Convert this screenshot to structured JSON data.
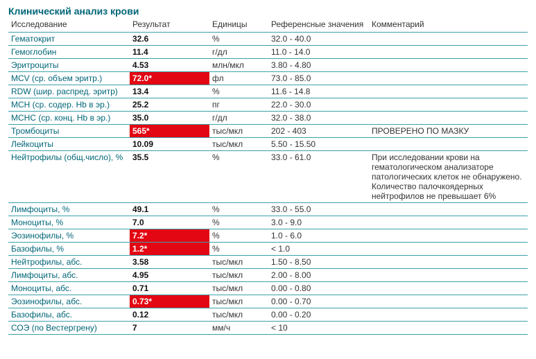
{
  "title": "Клинический анализ крови",
  "columns": [
    "Исследование",
    "Результат",
    "Единицы",
    "Референсные значения",
    "Комментарий"
  ],
  "colors": {
    "teal": "#006678",
    "rule": "#3aa0a8",
    "flag_bg": "#e30613",
    "flag_fg": "#ffffff",
    "text": "#333333",
    "result_text": "#111111",
    "background": "#ffffff"
  },
  "rows": [
    {
      "test": "Гематокрит",
      "result": "32.6",
      "flag": false,
      "units": "%",
      "ref": "32.0 - 40.0",
      "comment": ""
    },
    {
      "test": "Гемоглобин",
      "result": "11.4",
      "flag": false,
      "units": "г/дл",
      "ref": "11.0 - 14.0",
      "comment": ""
    },
    {
      "test": "Эритроциты",
      "result": "4.53",
      "flag": false,
      "units": "млн/мкл",
      "ref": "3.80 - 4.80",
      "comment": ""
    },
    {
      "test": "MCV (ср. объем эритр.)",
      "result": "72.0*",
      "flag": true,
      "units": "фл",
      "ref": "73.0 - 85.0",
      "comment": ""
    },
    {
      "test": "RDW (шир. распред. эритр)",
      "result": "13.4",
      "flag": false,
      "units": "%",
      "ref": "11.6 - 14.8",
      "comment": ""
    },
    {
      "test": "MCH (ср. содер. Hb в эр.)",
      "result": "25.2",
      "flag": false,
      "units": "пг",
      "ref": "22.0 - 30.0",
      "comment": ""
    },
    {
      "test": "MCHC (ср. конц. Hb в эр.)",
      "result": "35.0",
      "flag": false,
      "units": "г/дл",
      "ref": "32.0 - 38.0",
      "comment": ""
    },
    {
      "test": "Тромбоциты",
      "result": "565*",
      "flag": true,
      "units": "тыс/мкл",
      "ref": "202 - 403",
      "comment": "ПРОВЕРЕНО ПО МАЗКУ"
    },
    {
      "test": "Лейкоциты",
      "result": "10.09",
      "flag": false,
      "units": "тыс/мкл",
      "ref": "5.50 - 15.50",
      "comment": ""
    },
    {
      "test": "Нейтрофилы (общ.число), %",
      "result": "35.5",
      "flag": false,
      "units": "%",
      "ref": "33.0 - 61.0",
      "comment": "При исследовании крови на гематологическом анализаторе патологических клеток не обнаружено. Количество палочкоядерных нейтрофилов не превышает 6%"
    },
    {
      "test": "Лимфоциты, %",
      "result": "49.1",
      "flag": false,
      "units": "%",
      "ref": "33.0 - 55.0",
      "comment": ""
    },
    {
      "test": "Моноциты, %",
      "result": "7.0",
      "flag": false,
      "units": "%",
      "ref": "3.0 - 9.0",
      "comment": ""
    },
    {
      "test": "Эозинофилы, %",
      "result": "7.2*",
      "flag": true,
      "units": "%",
      "ref": "1.0 - 6.0",
      "comment": ""
    },
    {
      "test": "Базофилы, %",
      "result": "1.2*",
      "flag": true,
      "units": "%",
      "ref": "< 1.0",
      "comment": ""
    },
    {
      "test": "Нейтрофилы, абс.",
      "result": "3.58",
      "flag": false,
      "units": "тыс/мкл",
      "ref": "1.50 - 8.50",
      "comment": ""
    },
    {
      "test": "Лимфоциты, абс.",
      "result": "4.95",
      "flag": false,
      "units": "тыс/мкл",
      "ref": "2.00 - 8.00",
      "comment": ""
    },
    {
      "test": "Моноциты, абс.",
      "result": "0.71",
      "flag": false,
      "units": "тыс/мкл",
      "ref": "0.00 - 0.80",
      "comment": ""
    },
    {
      "test": "Эозинофилы, абс.",
      "result": "0.73*",
      "flag": true,
      "units": "тыс/мкл",
      "ref": "0.00 - 0.70",
      "comment": ""
    },
    {
      "test": "Базофилы, абс.",
      "result": "0.12",
      "flag": false,
      "units": "тыс/мкл",
      "ref": "0.00 - 0.20",
      "comment": ""
    },
    {
      "test": "СОЭ (по Вестергрену)",
      "result": "7",
      "flag": false,
      "units": "мм/ч",
      "ref": "< 10",
      "comment": ""
    }
  ]
}
